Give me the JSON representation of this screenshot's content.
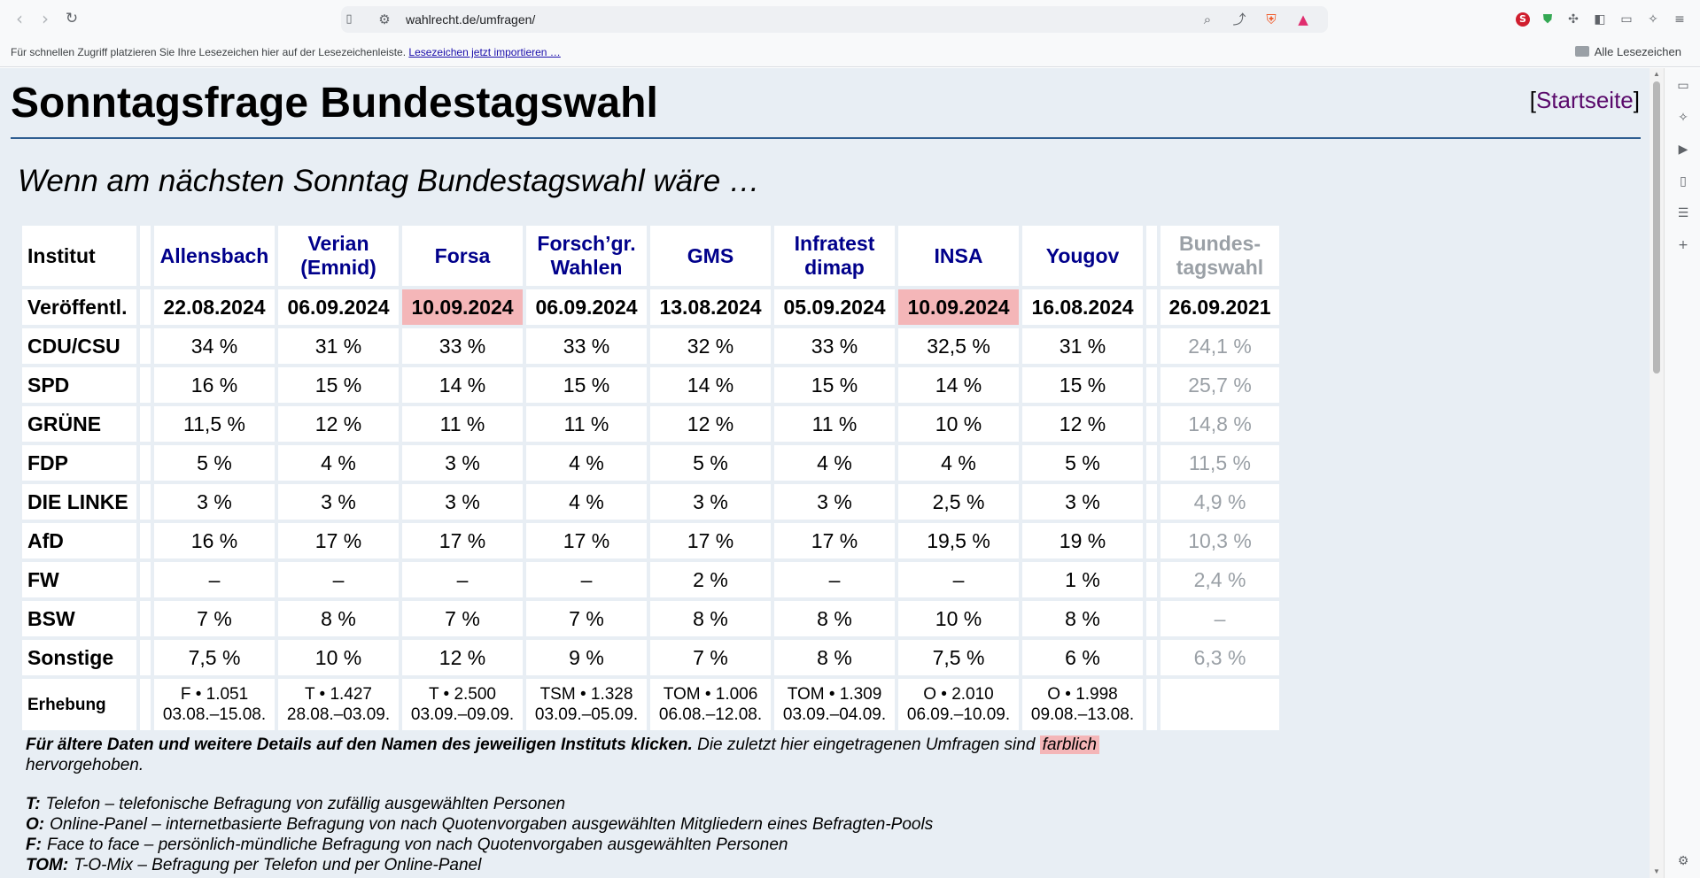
{
  "browser": {
    "url": "wahlrecht.de/umfragen/",
    "bookmarks_hint": "Für schnellen Zugriff platzieren Sie Ihre Lesezeichen hier auf der Lesezeichenleiste.",
    "bookmarks_import": "Lesezeichen jetzt importieren …",
    "all_bookmarks": "Alle Lesezeichen"
  },
  "page": {
    "title": "Sonntagsfrage Bundestagswahl",
    "home_open": "[",
    "home_link": "Startseite",
    "home_close": "]",
    "subtitle": "Wenn am nächsten Sonntag Bundestagswahl wäre …"
  },
  "table": {
    "row_labels": {
      "institut": "Institut",
      "published": "Veröffentl.",
      "survey": "Erhebung"
    },
    "institutes": [
      {
        "name_line1": "Allensbach",
        "name_line2": "",
        "date": "22.08.2024",
        "latest": false,
        "method": "F • 1.051",
        "period": "03.08.–15.08.",
        "values": [
          "34 %",
          "16 %",
          "11,5 %",
          "5 %",
          "3 %",
          "16 %",
          "–",
          "7 %",
          "7,5 %"
        ]
      },
      {
        "name_line1": "Verian",
        "name_line2": "(Emnid)",
        "date": "06.09.2024",
        "latest": false,
        "method": "T • 1.427",
        "period": "28.08.–03.09.",
        "values": [
          "31 %",
          "15 %",
          "12 %",
          "4 %",
          "3 %",
          "17 %",
          "–",
          "8 %",
          "10 %"
        ]
      },
      {
        "name_line1": "Forsa",
        "name_line2": "",
        "date": "10.09.2024",
        "latest": true,
        "method": "T • 2.500",
        "period": "03.09.–09.09.",
        "values": [
          "33 %",
          "14 %",
          "11 %",
          "3 %",
          "3 %",
          "17 %",
          "–",
          "7 %",
          "12 %"
        ]
      },
      {
        "name_line1": "Forsch’gr.",
        "name_line2": "Wahlen",
        "date": "06.09.2024",
        "latest": false,
        "method": "TSM • 1.328",
        "period": "03.09.–05.09.",
        "values": [
          "33 %",
          "15 %",
          "11 %",
          "4 %",
          "4 %",
          "17 %",
          "–",
          "7 %",
          "9 %"
        ]
      },
      {
        "name_line1": "GMS",
        "name_line2": "",
        "date": "13.08.2024",
        "latest": false,
        "method": "TOM • 1.006",
        "period": "06.08.–12.08.",
        "values": [
          "32 %",
          "14 %",
          "12 %",
          "5 %",
          "3 %",
          "17 %",
          "2 %",
          "8 %",
          "7 %"
        ]
      },
      {
        "name_line1": "Infratest",
        "name_line2": "dimap",
        "date": "05.09.2024",
        "latest": false,
        "method": "TOM • 1.309",
        "period": "03.09.–04.09.",
        "values": [
          "33 %",
          "15 %",
          "11 %",
          "4 %",
          "3 %",
          "17 %",
          "–",
          "8 %",
          "8 %"
        ]
      },
      {
        "name_line1": "INSA",
        "name_line2": "",
        "date": "10.09.2024",
        "latest": true,
        "method": "O • 2.010",
        "period": "06.09.–10.09.",
        "values": [
          "32,5 %",
          "14 %",
          "10 %",
          "4 %",
          "2,5 %",
          "19,5 %",
          "–",
          "10 %",
          "7,5 %"
        ]
      },
      {
        "name_line1": "Yougov",
        "name_line2": "",
        "date": "16.08.2024",
        "latest": false,
        "method": "O • 1.998",
        "period": "09.08.–13.08.",
        "values": [
          "31 %",
          "15 %",
          "12 %",
          "5 %",
          "3 %",
          "19 %",
          "1 %",
          "8 %",
          "6 %"
        ]
      }
    ],
    "election": {
      "name_line1": "Bundes-",
      "name_line2": "tagswahl",
      "date": "26.09.2021",
      "values": [
        "24,1 %",
        "25,7 %",
        "14,8 %",
        "11,5 %",
        "4,9 %",
        "10,3 %",
        "2,4 %",
        "–",
        "6,3 %"
      ]
    },
    "parties": [
      "CDU/CSU",
      "SPD",
      "GRÜNE",
      "FDP",
      "DIE LINKE",
      "AfD",
      "FW",
      "BSW",
      "Sonstige"
    ]
  },
  "notes": {
    "bold": "Für ältere Daten und weitere Details auf den Namen des jeweiligen Instituts klicken.",
    "text_before": "Die zuletzt hier eingetragenen Umfragen sind",
    "highlight": "farblich",
    "text_after": "hervorgehoben."
  },
  "legend": [
    {
      "code": "T:",
      "text": "Telefon – telefonische Befragung von zufällig ausgewählten Personen"
    },
    {
      "code": "O:",
      "text": "Online-Panel – internetbasierte Befragung von nach Quotenvorgaben ausgewählten Mitgliedern eines Befragten-Pools"
    },
    {
      "code": "F:",
      "text": "Face to face – persönlich-mündliche Befragung von nach Quotenvorgaben ausgewählten Personen"
    },
    {
      "code": "TOM:",
      "text": "T-O-Mix – Befragung per Telefon und per Online-Panel"
    }
  ],
  "colors": {
    "page_bg": "#e8eef4",
    "institute_link": "#00008b",
    "latest_highlight": "#f4b6b8",
    "election_gray": "#9aa0a6",
    "rule": "#2f5e91"
  }
}
